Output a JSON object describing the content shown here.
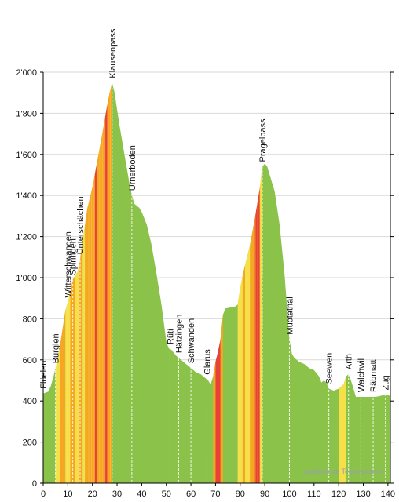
{
  "chart_data": {
    "type": "area",
    "xlim": [
      0,
      141
    ],
    "ylim": [
      0,
      2000
    ],
    "x_ticks": [
      0,
      10,
      20,
      30,
      40,
      50,
      60,
      70,
      80,
      90,
      100,
      110,
      120,
      130,
      140
    ],
    "x_tick_labels": [
      "0",
      "10",
      "20",
      "30",
      "40",
      "50",
      "60",
      "70",
      "80",
      "90",
      "100",
      "110",
      "120",
      "130",
      "140"
    ],
    "y_ticks": [
      0,
      200,
      400,
      600,
      800,
      1000,
      1200,
      1400,
      1600,
      1800,
      2000
    ],
    "y_tick_labels": [
      "0",
      "200",
      "400",
      "600",
      "800",
      "1'000",
      "1'200",
      "1'400",
      "1'600",
      "1'800",
      "2'000"
    ],
    "grid": "horizontal",
    "colors": {
      "flat": "#8bc34a",
      "moderate": "#f5e04a",
      "steep": "#f6a623",
      "very_steep": "#e8413a",
      "grid": "#d9d9d9",
      "marker": "#ffffff",
      "axis": "#000000"
    },
    "profile": [
      {
        "x": 0,
        "y": 436
      },
      {
        "x": 2,
        "y": 445
      },
      {
        "x": 3,
        "y": 470
      },
      {
        "x": 4,
        "y": 510
      },
      {
        "x": 5,
        "y": 560
      },
      {
        "x": 6,
        "y": 610
      },
      {
        "x": 7,
        "y": 680
      },
      {
        "x": 8,
        "y": 760
      },
      {
        "x": 9,
        "y": 840
      },
      {
        "x": 10,
        "y": 880
      },
      {
        "x": 11,
        "y": 930
      },
      {
        "x": 12,
        "y": 990
      },
      {
        "x": 13,
        "y": 1010
      },
      {
        "x": 14,
        "y": 1030
      },
      {
        "x": 15,
        "y": 1090
      },
      {
        "x": 16,
        "y": 1180
      },
      {
        "x": 17,
        "y": 1260
      },
      {
        "x": 18,
        "y": 1340
      },
      {
        "x": 20,
        "y": 1440
      },
      {
        "x": 22,
        "y": 1570
      },
      {
        "x": 24,
        "y": 1700
      },
      {
        "x": 26,
        "y": 1840
      },
      {
        "x": 27,
        "y": 1900
      },
      {
        "x": 28,
        "y": 1948
      },
      {
        "x": 29,
        "y": 1900
      },
      {
        "x": 30,
        "y": 1820
      },
      {
        "x": 31,
        "y": 1740
      },
      {
        "x": 32,
        "y": 1670
      },
      {
        "x": 33,
        "y": 1600
      },
      {
        "x": 34,
        "y": 1530
      },
      {
        "x": 35,
        "y": 1460
      },
      {
        "x": 36,
        "y": 1400
      },
      {
        "x": 37,
        "y": 1360
      },
      {
        "x": 38,
        "y": 1350
      },
      {
        "x": 39,
        "y": 1340
      },
      {
        "x": 40,
        "y": 1320
      },
      {
        "x": 42,
        "y": 1260
      },
      {
        "x": 44,
        "y": 1160
      },
      {
        "x": 46,
        "y": 1020
      },
      {
        "x": 48,
        "y": 870
      },
      {
        "x": 50,
        "y": 690
      },
      {
        "x": 51,
        "y": 655
      },
      {
        "x": 52,
        "y": 650
      },
      {
        "x": 54,
        "y": 620
      },
      {
        "x": 56,
        "y": 600
      },
      {
        "x": 58,
        "y": 580
      },
      {
        "x": 60,
        "y": 560
      },
      {
        "x": 62,
        "y": 540
      },
      {
        "x": 64,
        "y": 530
      },
      {
        "x": 66,
        "y": 510
      },
      {
        "x": 67,
        "y": 500
      },
      {
        "x": 68,
        "y": 480
      },
      {
        "x": 69,
        "y": 520
      },
      {
        "x": 70,
        "y": 590
      },
      {
        "x": 71,
        "y": 640
      },
      {
        "x": 72,
        "y": 700
      },
      {
        "x": 73,
        "y": 820
      },
      {
        "x": 74,
        "y": 850
      },
      {
        "x": 76,
        "y": 855
      },
      {
        "x": 78,
        "y": 860
      },
      {
        "x": 79,
        "y": 870
      },
      {
        "x": 80,
        "y": 950
      },
      {
        "x": 81,
        "y": 1010
      },
      {
        "x": 82,
        "y": 1060
      },
      {
        "x": 84,
        "y": 1160
      },
      {
        "x": 86,
        "y": 1290
      },
      {
        "x": 88,
        "y": 1440
      },
      {
        "x": 89,
        "y": 1540
      },
      {
        "x": 90,
        "y": 1555
      },
      {
        "x": 91,
        "y": 1540
      },
      {
        "x": 92,
        "y": 1500
      },
      {
        "x": 94,
        "y": 1420
      },
      {
        "x": 96,
        "y": 1260
      },
      {
        "x": 98,
        "y": 1020
      },
      {
        "x": 100,
        "y": 700
      },
      {
        "x": 101,
        "y": 630
      },
      {
        "x": 102,
        "y": 610
      },
      {
        "x": 104,
        "y": 590
      },
      {
        "x": 106,
        "y": 580
      },
      {
        "x": 108,
        "y": 560
      },
      {
        "x": 110,
        "y": 550
      },
      {
        "x": 112,
        "y": 520
      },
      {
        "x": 113,
        "y": 490
      },
      {
        "x": 114,
        "y": 500
      },
      {
        "x": 115,
        "y": 490
      },
      {
        "x": 116,
        "y": 460
      },
      {
        "x": 118,
        "y": 450
      },
      {
        "x": 120,
        "y": 460
      },
      {
        "x": 122,
        "y": 480
      },
      {
        "x": 123,
        "y": 520
      },
      {
        "x": 124,
        "y": 530
      },
      {
        "x": 125,
        "y": 500
      },
      {
        "x": 126,
        "y": 460
      },
      {
        "x": 127,
        "y": 420
      },
      {
        "x": 130,
        "y": 420
      },
      {
        "x": 133,
        "y": 420
      },
      {
        "x": 135,
        "y": 420
      },
      {
        "x": 137,
        "y": 425
      },
      {
        "x": 139,
        "y": 430
      },
      {
        "x": 141,
        "y": 425
      }
    ],
    "grade_bands": [
      {
        "from": 5,
        "to": 7,
        "level": "moderate"
      },
      {
        "from": 7,
        "to": 9,
        "level": "steep"
      },
      {
        "from": 9,
        "to": 11,
        "level": "moderate"
      },
      {
        "from": 11,
        "to": 13,
        "level": "steep"
      },
      {
        "from": 13,
        "to": 14.5,
        "level": "moderate"
      },
      {
        "from": 14.5,
        "to": 16,
        "level": "steep"
      },
      {
        "from": 16,
        "to": 17,
        "level": "moderate"
      },
      {
        "from": 17,
        "to": 28,
        "level": "steep"
      },
      {
        "from": 21,
        "to": 22,
        "level": "very_steep"
      },
      {
        "from": 25,
        "to": 26,
        "level": "very_steep"
      },
      {
        "from": 69,
        "to": 70,
        "level": "steep"
      },
      {
        "from": 70,
        "to": 72,
        "level": "very_steep"
      },
      {
        "from": 72,
        "to": 73,
        "level": "steep"
      },
      {
        "from": 79,
        "to": 81,
        "level": "moderate"
      },
      {
        "from": 81,
        "to": 82,
        "level": "steep"
      },
      {
        "from": 82,
        "to": 84,
        "level": "moderate"
      },
      {
        "from": 84,
        "to": 86,
        "level": "steep"
      },
      {
        "from": 86,
        "to": 88,
        "level": "very_steep"
      },
      {
        "from": 88,
        "to": 89,
        "level": "moderate"
      },
      {
        "from": 120,
        "to": 123,
        "level": "moderate"
      }
    ],
    "places": [
      {
        "name": "Flüelen",
        "km": 0
      },
      {
        "name": "Bürglen",
        "km": 5
      },
      {
        "name": "Witterschwanden",
        "km": 10
      },
      {
        "name": "Spiringen",
        "km": 12
      },
      {
        "name": "Unterschächen",
        "km": 15
      },
      {
        "name": "Klausenpass",
        "km": 28
      },
      {
        "name": "Urnerboden",
        "km": 36
      },
      {
        "name": "Rüti",
        "km": 51.5
      },
      {
        "name": "Hätzingen",
        "km": 55
      },
      {
        "name": "Schwanden",
        "km": 60
      },
      {
        "name": "Glarus",
        "km": 66.5
      },
      {
        "name": "Pragelpass",
        "km": 89
      },
      {
        "name": "Muotathal",
        "km": 100
      },
      {
        "name": "Seewen",
        "km": 116
      },
      {
        "name": "Arth",
        "km": 124
      },
      {
        "name": "Walchwil",
        "km": 129
      },
      {
        "name": "Räbmatt",
        "km": 134
      },
      {
        "name": "Zug",
        "km": 139
      }
    ],
    "watermark": "quäldich.de Tourenplaner"
  }
}
